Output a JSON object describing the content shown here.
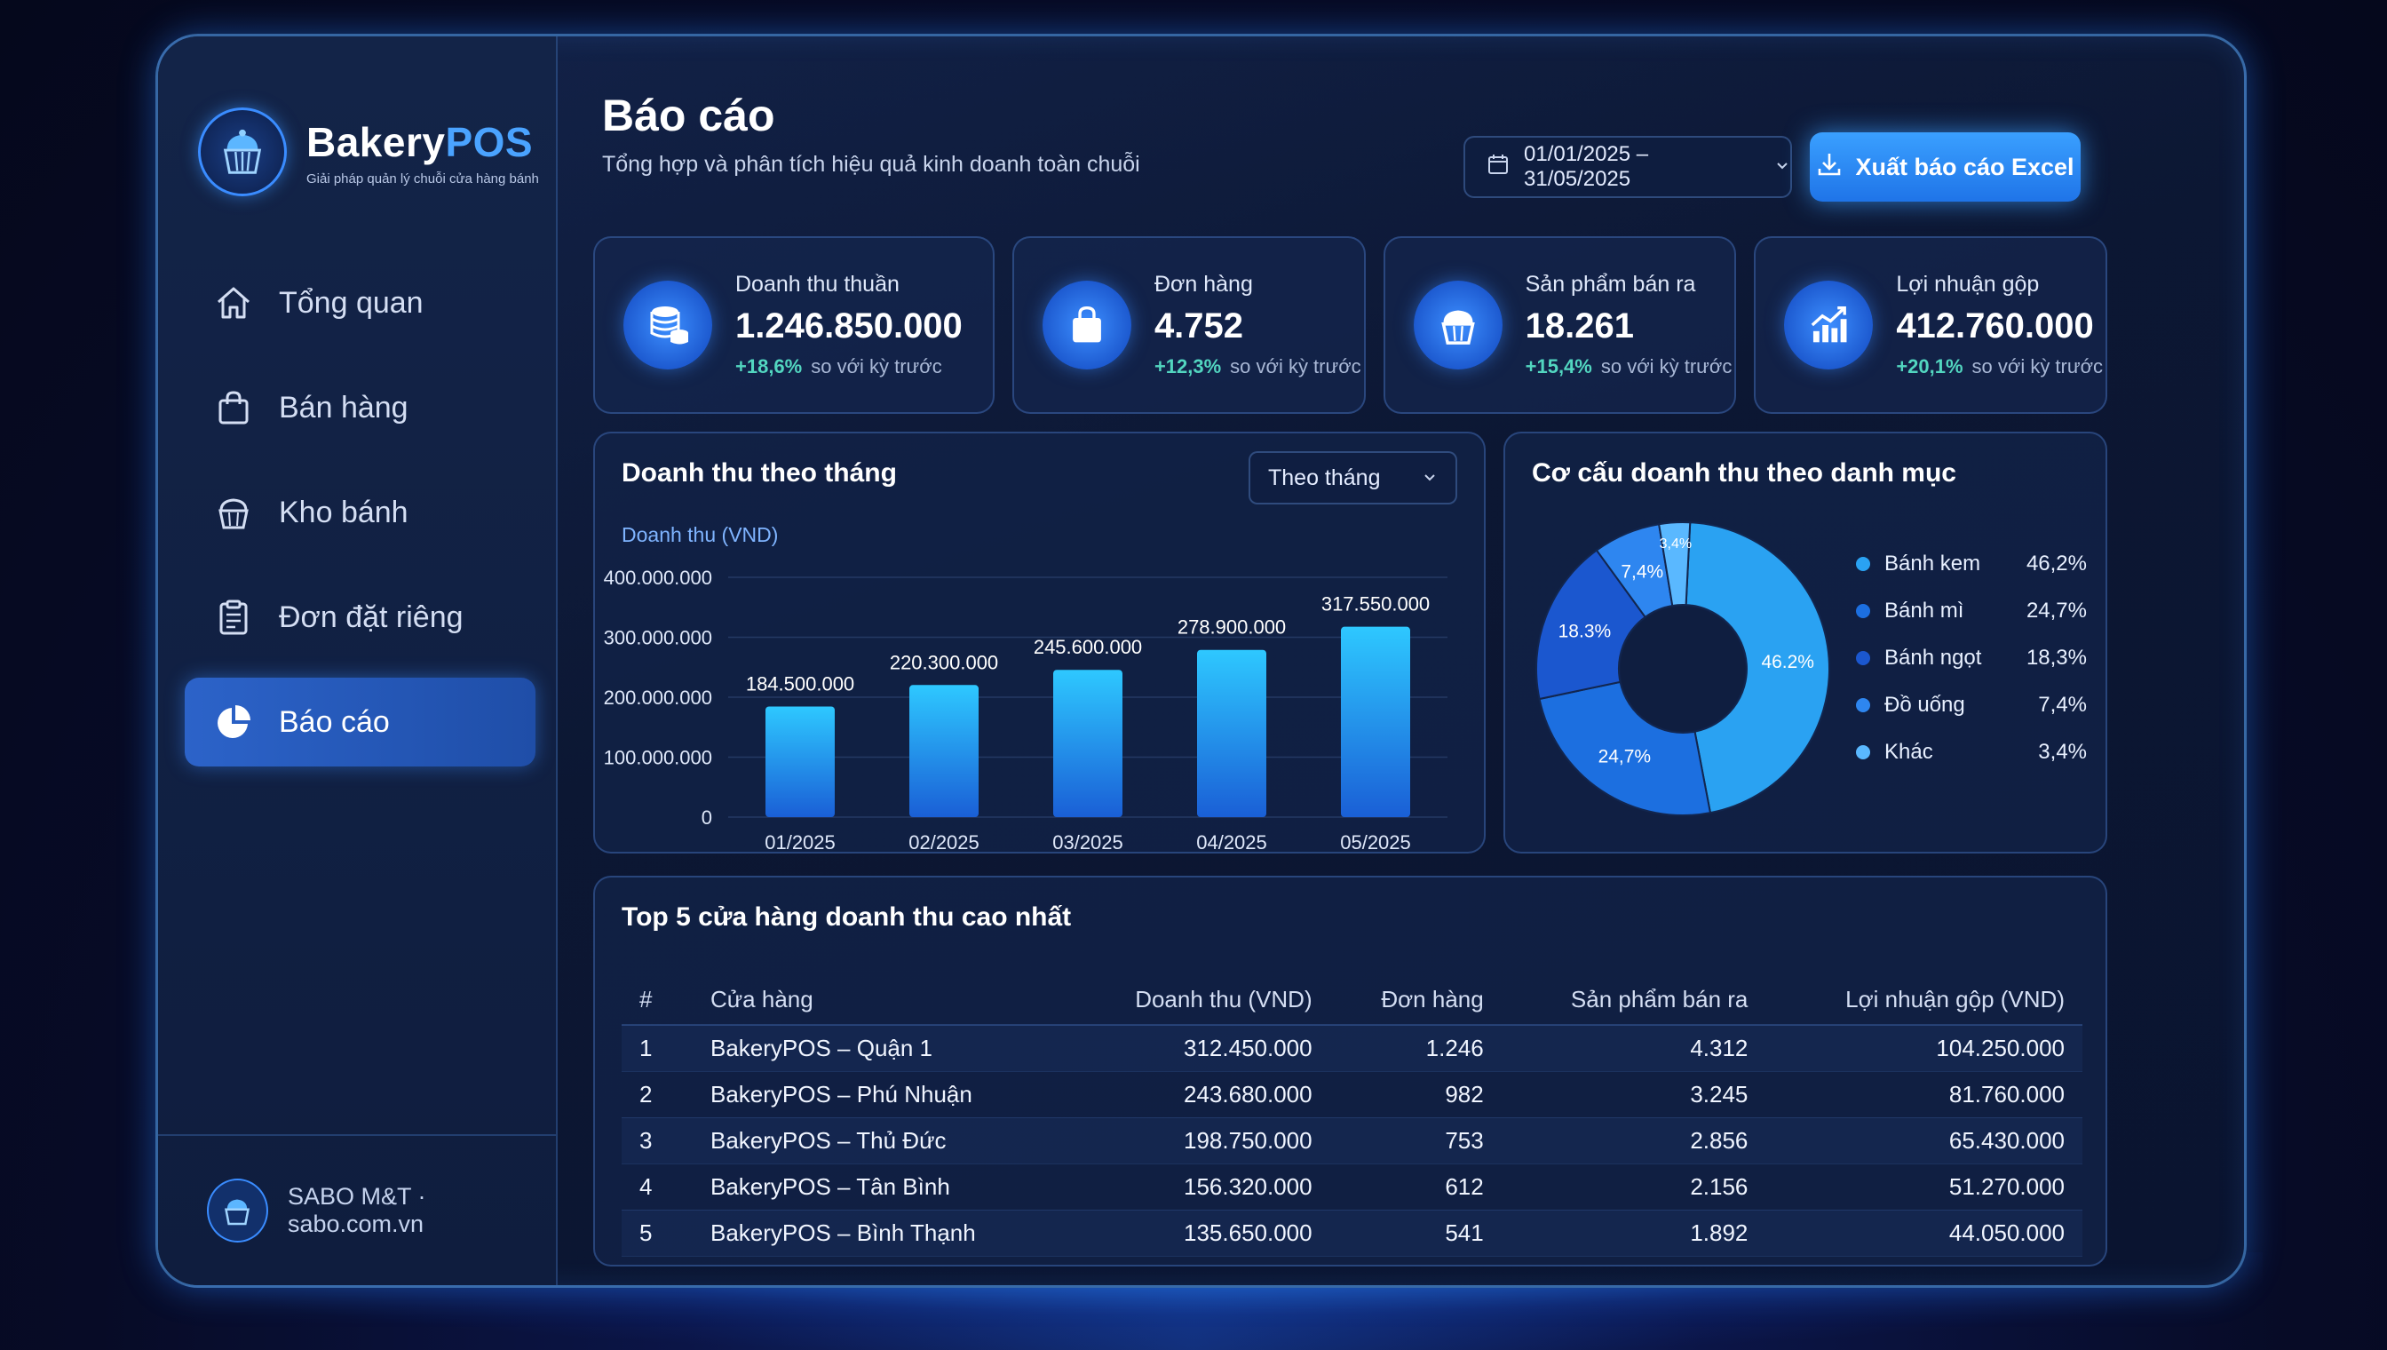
{
  "brand": {
    "name_main": "Bakery",
    "name_accent": "POS",
    "tagline": "Giải pháp quản lý chuỗi cửa hàng bánh"
  },
  "nav": [
    {
      "label": "Tổng quan",
      "icon": "home-icon"
    },
    {
      "label": "Bán hàng",
      "icon": "shopping-bag-icon"
    },
    {
      "label": "Kho bánh",
      "icon": "cupcake-icon"
    },
    {
      "label": "Đơn đặt riêng",
      "icon": "clipboard-icon"
    },
    {
      "label": "Báo cáo",
      "icon": "pie-chart-icon",
      "active": true
    }
  ],
  "footer": {
    "text": "SABO M&T · sabo.com.vn"
  },
  "header": {
    "title": "Báo cáo",
    "subtitle": "Tổng hợp và phân tích hiệu quả kinh doanh toàn chuỗi",
    "date_range": "01/01/2025 – 31/05/2025",
    "export_label": "Xuất báo cáo Excel"
  },
  "stats": [
    {
      "label": "Doanh thu thuần",
      "value": "1.246.850.000",
      "trend": "+18,6%",
      "trend_text": "so với kỳ trước",
      "icon": "coins-icon"
    },
    {
      "label": "Đơn hàng",
      "value": "4.752",
      "trend": "+12,3%",
      "trend_text": "so với kỳ trước",
      "icon": "shopping-bag-icon"
    },
    {
      "label": "Sản phẩm bán ra",
      "value": "18.261",
      "trend": "+15,4%",
      "trend_text": "so với kỳ trước",
      "icon": "cupcake-icon"
    },
    {
      "label": "Lợi nhuận gộp",
      "value": "412.760.000",
      "trend": "+20,1%",
      "trend_text": "so với kỳ trước",
      "icon": "growth-chart-icon"
    }
  ],
  "colors": {
    "accent": "#2f8cff",
    "positive": "#52d6c0",
    "bar_top": "#2ec8ff",
    "bar_bottom": "#1a5fd6"
  },
  "bar_panel": {
    "title": "Doanh thu theo tháng",
    "period": "Theo tháng"
  },
  "pie_panel": {
    "title": "Cơ cấu doanh thu theo danh mục"
  },
  "chart_data": [
    {
      "type": "bar",
      "title": "Doanh thu theo tháng",
      "ylabel": "Doanh thu (VND)",
      "categories": [
        "01/2025",
        "02/2025",
        "03/2025",
        "04/2025",
        "05/2025"
      ],
      "values": [
        184500000,
        220300000,
        245600000,
        278900000,
        317550000
      ],
      "value_labels": [
        "184.500.000",
        "220.300.000",
        "245.600.000",
        "278.900.000",
        "317.550.000"
      ],
      "ylim": [
        0,
        400000000
      ],
      "yticks": [
        0,
        100000000,
        200000000,
        300000000,
        400000000
      ],
      "ytick_labels": [
        "0",
        "100.000.000",
        "200.000.000",
        "300.000.000",
        "400.000.000"
      ],
      "grid": true
    },
    {
      "type": "pie",
      "title": "Cơ cấu doanh thu theo danh mục",
      "categories": [
        "Bánh kem",
        "Bánh mì",
        "Bánh ngọt",
        "Đồ uống",
        "Khác"
      ],
      "values": [
        46.2,
        24.7,
        18.3,
        7.4,
        3.4
      ],
      "value_labels": [
        "46,2%",
        "24,7%",
        "18,3%",
        "7,4%",
        "3,4%"
      ],
      "slice_labels": [
        "46.2%",
        "24,7%",
        "18.3%",
        "7,4%",
        "3,4%"
      ],
      "colors": [
        "#2aa2f2",
        "#1c6fe0",
        "#1b57cf",
        "#2e86f0",
        "#5ab8ff"
      ],
      "legend": "right"
    }
  ],
  "table": {
    "title": "Top 5 cửa hàng doanh thu cao nhất",
    "headers": [
      "#",
      "Cửa hàng",
      "Doanh thu (VND)",
      "Đơn hàng",
      "Sản phẩm bán ra",
      "Lợi nhuận gộp (VND)"
    ],
    "rows": [
      [
        "1",
        "BakeryPOS – Quận 1",
        "312.450.000",
        "1.246",
        "4.312",
        "104.250.000"
      ],
      [
        "2",
        "BakeryPOS – Phú Nhuận",
        "243.680.000",
        "982",
        "3.245",
        "81.760.000"
      ],
      [
        "3",
        "BakeryPOS – Thủ Đức",
        "198.750.000",
        "753",
        "2.856",
        "65.430.000"
      ],
      [
        "4",
        "BakeryPOS – Tân Bình",
        "156.320.000",
        "612",
        "2.156",
        "51.270.000"
      ],
      [
        "5",
        "BakeryPOS – Bình Thạnh",
        "135.650.000",
        "541",
        "1.892",
        "44.050.000"
      ]
    ]
  }
}
